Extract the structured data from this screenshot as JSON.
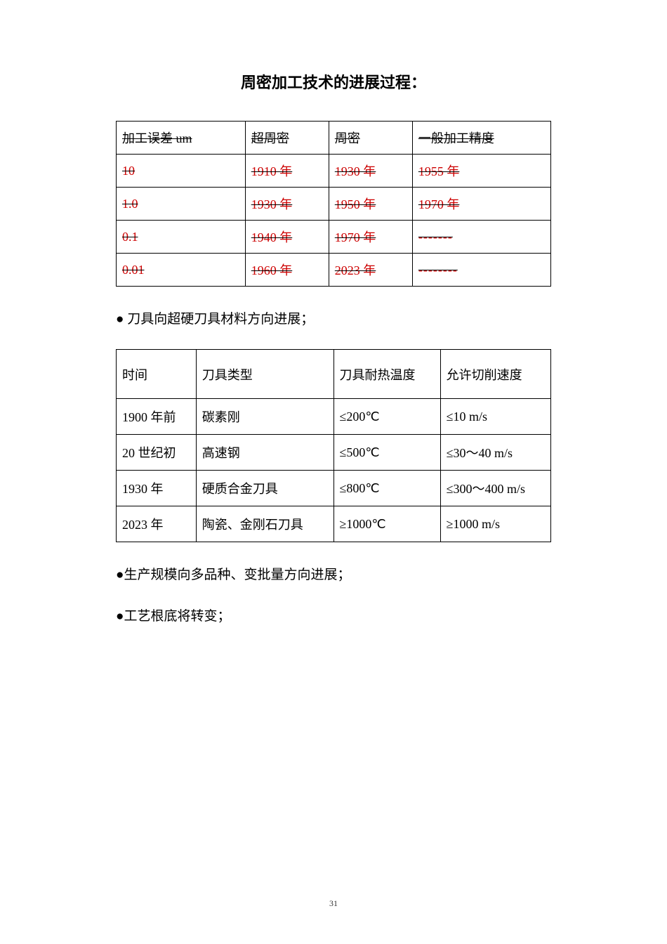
{
  "title": "周密加工技术的进展过程：",
  "table1": {
    "headers": [
      "加工误差 um",
      "超周密",
      "周密",
      "一般加工精度"
    ],
    "rows": [
      [
        "10",
        "1910 年",
        "1930 年",
        "1955 年"
      ],
      [
        "1.0",
        "1930 年",
        "1950 年",
        "1970 年"
      ],
      [
        "0.1",
        "1940 年",
        "1970 年",
        "-------"
      ],
      [
        "0.01",
        "1960 年",
        "2023 年",
        "--------"
      ]
    ]
  },
  "bullet1": "● 刀具向超硬刀具材料方向进展；",
  "table2": {
    "headers": [
      "时间",
      "刀具类型",
      "刀具耐热温度",
      "允许切削速度"
    ],
    "rows": [
      [
        "1900 年前",
        "碳素刚",
        "≤200℃",
        "≤10 m/s"
      ],
      [
        "20 世纪初",
        "高速钢",
        "≤500℃",
        "≤30～40 m/s"
      ],
      [
        "1930 年",
        "硬质合金刀具",
        "≤800℃",
        "≤300～400 m/s"
      ],
      [
        "2023 年",
        "陶瓷、金刚石刀具",
        "≥1000℃",
        "≥1000 m/s"
      ]
    ]
  },
  "bullet2": "●生产规模向多品种、变批量方向进展；",
  "bullet3": "●工艺根底将转变；",
  "pageNumber": "31"
}
